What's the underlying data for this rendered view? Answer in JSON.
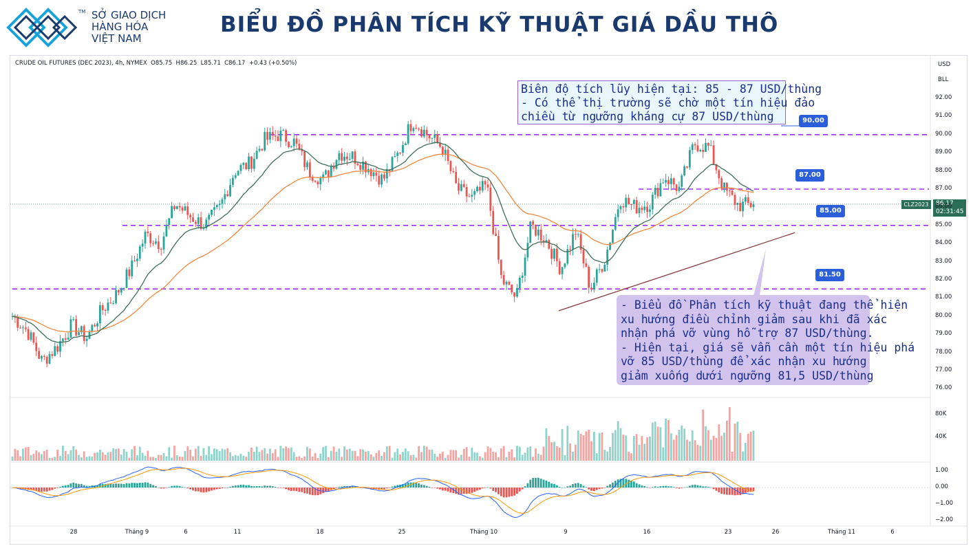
{
  "header": {
    "org_name_lines": [
      "SỞ GIAO DỊCH",
      "HÀNG HÓA",
      "VIỆT NAM"
    ],
    "trademark": "TM",
    "title": "BIỂU ĐỒ PHÂN TÍCH KỸ THUẬT GIÁ DẦU THÔ"
  },
  "chart_info": {
    "symbol_line": "CRUDE OIL FUTURES (DEC 2023), 4h, NYMEX",
    "ohlc_text": "O85.75  H86.25  L85.71  C86.17  +0.43 (+0.50%)",
    "unit_top": "USD",
    "unit_bottom": "BLL"
  },
  "annotations": {
    "top_box": "Biên độ tích lũy hiện tại: 85 - 87 USD/thùng\n- Có thể thị trường sẽ chờ một tín hiệu đảo\nchiều từ ngưỡng kháng cự 87 USD/thùng",
    "bottom_box": "- Biểu đồ Phân tích kỹ thuật đang thể hiện\nxu hướng điều chỉnh giảm sau khi đã xác\nnhận phá vỡ vùng hỗ trợ 87 USD/thùng.\n- Hiện tại, giá sẽ vẫn cần một tín hiệu phá\nvỡ 85 USD/thùng để xác nhận xu hướng\ngiảm xuống dưới ngưỡng 81,5 USD/thùng"
  },
  "price_tags": {
    "symbol": "CLZ2023",
    "last_price": "86.17",
    "countdown": "02:31:45"
  },
  "colors": {
    "up": "#26a69a",
    "down": "#ef5350",
    "level_line": "#9b30ff",
    "ema_fast": "#3c6e58",
    "ema_slow": "#f0883e",
    "macd_line": "#2962ff",
    "signal_line": "#ff9800",
    "trendline": "#8b3a3a",
    "tag_blue": "#2b5fd9"
  },
  "chart_data": {
    "type": "candlestick",
    "price_axis": {
      "ylim": [
        75.5,
        93.0
      ],
      "ticks": [
        "92.00",
        "91.00",
        "90.00",
        "89.00",
        "88.00",
        "87.00",
        "86.00",
        "85.00",
        "84.00",
        "83.00",
        "82.00",
        "81.00",
        "80.00",
        "79.00",
        "78.00",
        "77.00",
        "76.00"
      ]
    },
    "volume_axis": {
      "ticks": [
        "80K",
        "40K"
      ]
    },
    "macd_axis": {
      "ticks": [
        "1.00",
        "0.00",
        "−1.00",
        "−2.00"
      ]
    },
    "x_tick_labels": [
      "28",
      "Tháng 9",
      "6",
      "11",
      "18",
      "25",
      "Tháng 10",
      "9",
      "16",
      "23",
      "26",
      "Tháng 11",
      "6"
    ],
    "levels": [
      {
        "label": "90.00",
        "value": 90.0
      },
      {
        "label": "87.00",
        "value": 87.0
      },
      {
        "label": "85.00",
        "value": 85.0
      },
      {
        "label": "81.50",
        "value": 81.5
      }
    ],
    "price_path": [
      80.0,
      79.2,
      77.5,
      78.3,
      79.5,
      78.8,
      80.3,
      81.2,
      82.6,
      84.5,
      84.0,
      86.2,
      85.5,
      85.0,
      86.0,
      88.0,
      88.4,
      89.7,
      90.0,
      89.6,
      88.0,
      87.5,
      89.0,
      88.8,
      88.2,
      87.5,
      88.9,
      90.8,
      90.0,
      89.3,
      87.0,
      86.5,
      87.2,
      82.0,
      81.0,
      85.0,
      84.2,
      82.6,
      84.7,
      81.5,
      83.2,
      86.5,
      86.0,
      86.2,
      87.7,
      87.0,
      89.5,
      89.3,
      87.0,
      86.1,
      86.17
    ]
  }
}
